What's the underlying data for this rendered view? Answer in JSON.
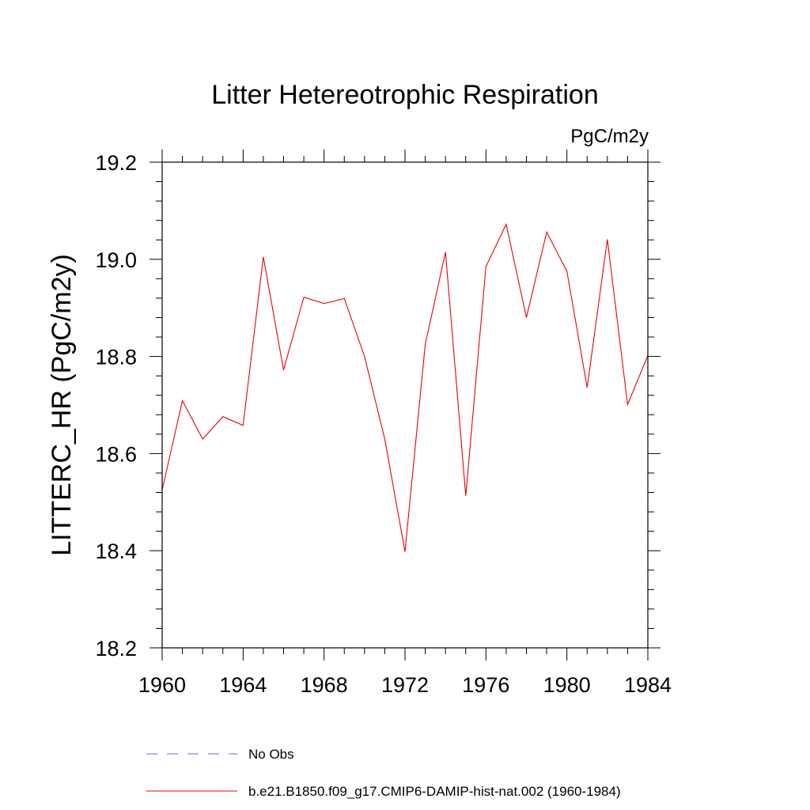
{
  "chart_data": {
    "type": "line",
    "title": "Litter Hetereotrophic Respiration",
    "units_label": "PgC/m2y",
    "ylabel": "LITTERC_HR  (PgC/m2y)",
    "xlabel": "",
    "xlim": [
      1960,
      1984
    ],
    "ylim": [
      18.2,
      19.2
    ],
    "x_ticks": [
      "1960",
      "1964",
      "1968",
      "1972",
      "1976",
      "1980",
      "1984"
    ],
    "y_ticks": [
      "18.2",
      "18.4",
      "18.6",
      "18.8",
      "19.0",
      "19.2"
    ],
    "x": [
      1960,
      1961,
      1962,
      1963,
      1964,
      1965,
      1966,
      1967,
      1968,
      1969,
      1970,
      1971,
      1972,
      1973,
      1974,
      1975,
      1976,
      1977,
      1978,
      1979,
      1980,
      1981,
      1982,
      1983,
      1984
    ],
    "series": [
      {
        "name": "b.e21.B1850.f09_g17.CMIP6-DAMIP-hist-nat.002 (1960-1984)",
        "color": "#e8000b",
        "style": "solid",
        "values": [
          18.525,
          18.709,
          18.63,
          18.676,
          18.658,
          19.005,
          18.772,
          18.922,
          18.909,
          18.919,
          18.8,
          18.63,
          18.398,
          18.825,
          19.015,
          18.513,
          18.985,
          19.072,
          18.88,
          19.056,
          18.975,
          18.736,
          19.041,
          18.701,
          18.802
        ]
      }
    ],
    "legend": [
      {
        "label": "No Obs",
        "style": "dashed",
        "color": "#6a6ad0"
      },
      {
        "label": "b.e21.B1850.f09_g17.CMIP6-DAMIP-hist-nat.002 (1960-1984)",
        "style": "solid",
        "color": "#e8000b"
      }
    ],
    "legend_placement": "bottom"
  }
}
